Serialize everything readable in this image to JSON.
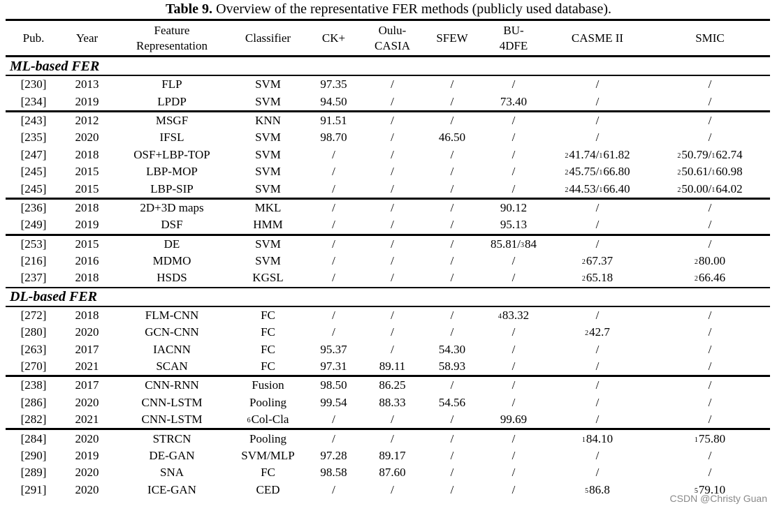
{
  "caption": {
    "label": "Table 9.",
    "text": " Overview of the representative FER methods (publicly used database)."
  },
  "headers": {
    "pub": "Pub.",
    "year": "Year",
    "feature_line1": "Feature",
    "feature_line2": "Representation",
    "classifier": "Classifier",
    "ck": "CK+",
    "oulu_line1": "Oulu-",
    "oulu_line2": "CASIA",
    "sfew": "SFEW",
    "bu_line1": "BU-",
    "bu_line2": "4DFE",
    "casme": "CASME II",
    "smic": "SMIC"
  },
  "sections": [
    {
      "title": "ML-based FER",
      "rows": [
        {
          "pub": "[230]",
          "year": "2013",
          "feature": "FLP",
          "classifier": "SVM",
          "ck": "97.35",
          "oulu": "/",
          "sfew": "/",
          "bu": "/",
          "casme": "/",
          "smic": "/",
          "group_start": true
        },
        {
          "pub": "[234]",
          "year": "2019",
          "feature": "LPDP",
          "classifier": "SVM",
          "ck": "94.50",
          "oulu": "/",
          "sfew": "/",
          "bu": "73.40",
          "casme": "/",
          "smic": "/"
        },
        {
          "pub": "[243]",
          "year": "2012",
          "feature": "MSGF",
          "classifier": "KNN",
          "ck": "91.51",
          "oulu": "/",
          "sfew": "/",
          "bu": "/",
          "casme": "/",
          "smic": "/",
          "group_start": true
        },
        {
          "pub": "[235]",
          "year": "2020",
          "feature": "IFSL",
          "classifier": "SVM",
          "ck": "98.70",
          "oulu": "/",
          "sfew": "46.50",
          "bu": "/",
          "casme": "/",
          "smic": "/"
        },
        {
          "pub": "[247]",
          "year": "2018",
          "feature": "OSF+LBP-TOP",
          "classifier": "SVM",
          "ck": "/",
          "oulu": "/",
          "sfew": "/",
          "bu": "/",
          "casme": "²41.74/¹61.82",
          "smic": "²50.79/¹62.74"
        },
        {
          "pub": "[245]",
          "year": "2015",
          "feature": "LBP-MOP",
          "classifier": "SVM",
          "ck": "/",
          "oulu": "/",
          "sfew": "/",
          "bu": "/",
          "casme": "²45.75/¹66.80",
          "smic": "²50.61/¹60.98"
        },
        {
          "pub": "[245]",
          "year": "2015",
          "feature": "LBP-SIP",
          "classifier": "SVM",
          "ck": "/",
          "oulu": "/",
          "sfew": "/",
          "bu": "/",
          "casme": "²44.53/¹66.40",
          "smic": "²50.00/¹64.02"
        },
        {
          "pub": "[236]",
          "year": "2018",
          "feature": "2D+3D maps",
          "classifier": "MKL",
          "ck": "/",
          "oulu": "/",
          "sfew": "/",
          "bu": "90.12",
          "casme": "/",
          "smic": "/",
          "group_start": true
        },
        {
          "pub": "[249]",
          "year": "2019",
          "feature": "DSF",
          "classifier": "HMM",
          "ck": "/",
          "oulu": "/",
          "sfew": "/",
          "bu": "95.13",
          "casme": "/",
          "smic": "/"
        },
        {
          "pub": "[253]",
          "year": "2015",
          "feature": "DE",
          "classifier": "SVM",
          "ck": "/",
          "oulu": "/",
          "sfew": "/",
          "bu": "85.81/³84",
          "casme": "/",
          "smic": "/",
          "group_start": true
        },
        {
          "pub": "[216]",
          "year": "2016",
          "feature": "MDMO",
          "classifier": "SVM",
          "ck": "/",
          "oulu": "/",
          "sfew": "/",
          "bu": "/",
          "casme": "²67.37",
          "smic": "²80.00"
        },
        {
          "pub": "[237]",
          "year": "2018",
          "feature": "HSDS",
          "classifier": "KGSL",
          "ck": "/",
          "oulu": "/",
          "sfew": "/",
          "bu": "/",
          "casme": "²65.18",
          "smic": "²66.46",
          "last": true
        }
      ]
    },
    {
      "title": "DL-based FER",
      "rows": [
        {
          "pub": "[272]",
          "year": "2018",
          "feature": "FLM-CNN",
          "classifier": "FC",
          "ck": "/",
          "oulu": "/",
          "sfew": "/",
          "bu": "⁴83.32",
          "casme": "/",
          "smic": "/",
          "group_start": true
        },
        {
          "pub": "[280]",
          "year": "2020",
          "feature": "GCN-CNN",
          "classifier": "FC",
          "ck": "/",
          "oulu": "/",
          "sfew": "/",
          "bu": "/",
          "casme": "²42.7",
          "smic": "/"
        },
        {
          "pub": "[263]",
          "year": "2017",
          "feature": "IACNN",
          "classifier": "FC",
          "ck": "95.37",
          "oulu": "/",
          "sfew": "54.30",
          "bu": "/",
          "casme": "/",
          "smic": "/"
        },
        {
          "pub": "[270]",
          "year": "2021",
          "feature": "SCAN",
          "classifier": "FC",
          "ck": "97.31",
          "oulu": "89.11",
          "sfew": "58.93",
          "bu": "/",
          "casme": "/",
          "smic": "/"
        },
        {
          "pub": "[238]",
          "year": "2017",
          "feature": "CNN-RNN",
          "classifier": "Fusion",
          "ck": "98.50",
          "oulu": "86.25",
          "sfew": "/",
          "bu": "/",
          "casme": "/",
          "smic": "/",
          "group_start": true
        },
        {
          "pub": "[286]",
          "year": "2020",
          "feature": "CNN-LSTM",
          "classifier": "Pooling",
          "ck": "99.54",
          "oulu": "88.33",
          "sfew": "54.56",
          "bu": "/",
          "casme": "/",
          "smic": "/"
        },
        {
          "pub": "[282]",
          "year": "2021",
          "feature": "CNN-LSTM",
          "classifier": "⁶Col-Cla",
          "ck": "/",
          "oulu": "/",
          "sfew": "/",
          "bu": "99.69",
          "casme": "/",
          "smic": "/"
        },
        {
          "pub": "[284]",
          "year": "2020",
          "feature": "STRCN",
          "classifier": "Pooling",
          "ck": "/",
          "oulu": "/",
          "sfew": "/",
          "bu": "/",
          "casme": "¹84.10",
          "smic": "¹75.80",
          "group_start": true
        },
        {
          "pub": "[290]",
          "year": "2019",
          "feature": "DE-GAN",
          "classifier": "SVM/MLP",
          "ck": "97.28",
          "oulu": "89.17",
          "sfew": "/",
          "bu": "/",
          "casme": "/",
          "smic": "/"
        },
        {
          "pub": "[289]",
          "year": "2020",
          "feature": "SNA",
          "classifier": "FC",
          "ck": "98.58",
          "oulu": "87.60",
          "sfew": "/",
          "bu": "/",
          "casme": "/",
          "smic": "/"
        },
        {
          "pub": "[291]",
          "year": "2020",
          "feature": "ICE-GAN",
          "classifier": "CED",
          "ck": "/",
          "oulu": "/",
          "sfew": "/",
          "bu": "/",
          "casme": "⁵86.8",
          "smic": "⁵79.10"
        }
      ]
    }
  ],
  "watermark": "CSDN @Christy Guan"
}
